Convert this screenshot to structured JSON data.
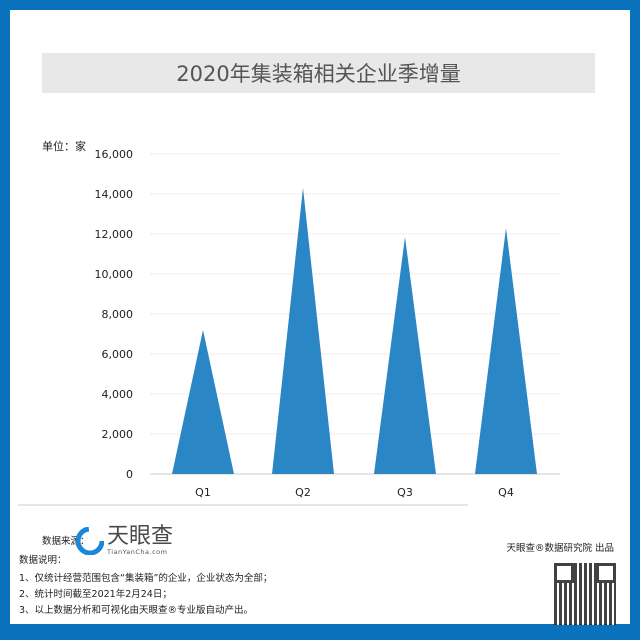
{
  "title": "2020年集装箱相关企业季增量",
  "unit_label": "单位：家",
  "chart_data": {
    "type": "bar",
    "bar_shape": "triangle",
    "title": "2020年集装箱相关企业季增量",
    "categories": [
      "Q1",
      "Q2",
      "Q3",
      "Q4"
    ],
    "values": [
      7200,
      14300,
      11850,
      12300
    ],
    "ylim": [
      0,
      16000
    ],
    "yticks": [
      "0",
      "2,000",
      "4,000",
      "6,000",
      "8,000",
      "10,000",
      "12,000",
      "14,000",
      "16,000"
    ],
    "grid": true,
    "color": "#2b86c5"
  },
  "footer": {
    "source_label": "数据来源：",
    "logo_text": "天眼查",
    "logo_sub": "TianYanCha.com",
    "notes_label": "数据说明：",
    "notes": [
      "1、仅统计经营范围包含“集装箱”的企业，企业状态为全部；",
      "2、统计时间截至2021年2月24日；",
      "3、以上数据分析和可视化由天眼查®专业版自动产出。"
    ],
    "credit": "天眼查®数据研究院 出品"
  },
  "colors": {
    "frame": "#0a72bd",
    "bar": "#2b86c5",
    "title_bg": "#e8e8e8"
  }
}
